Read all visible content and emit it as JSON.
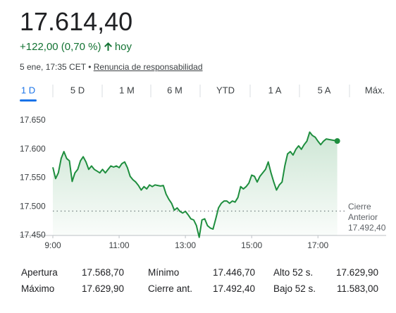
{
  "header": {
    "price": "17.614,40",
    "change": "+122,00 (0,70 %)",
    "period": "hoy",
    "timestamp": "5 ene, 17:35 CET",
    "separator": "•",
    "disclaimer": "Renuncia de responsabilidad"
  },
  "tabs": [
    "1 D",
    "5 D",
    "1 M",
    "6 M",
    "YTD",
    "1 A",
    "5 A",
    "Máx."
  ],
  "chart_data": {
    "type": "line",
    "color": "#1e8e3e",
    "x": [
      540,
      545,
      550,
      555,
      560,
      565,
      570,
      575,
      580,
      585,
      590,
      595,
      600,
      605,
      610,
      615,
      620,
      625,
      630,
      635,
      640,
      645,
      650,
      655,
      660,
      665,
      670,
      675,
      680,
      685,
      690,
      695,
      700,
      705,
      710,
      715,
      720,
      725,
      730,
      735,
      740,
      745,
      750,
      755,
      760,
      765,
      770,
      775,
      780,
      785,
      790,
      795,
      800,
      805,
      810,
      815,
      820,
      825,
      830,
      835,
      840,
      845,
      850,
      855,
      860,
      865,
      870,
      875,
      880,
      885,
      890,
      895,
      900,
      905,
      910,
      915,
      920,
      925,
      930,
      935,
      940,
      945,
      950,
      955,
      960,
      965,
      970,
      975,
      980,
      985,
      990,
      995,
      1000,
      1005,
      1010,
      1015,
      1020,
      1025,
      1030,
      1035,
      1040,
      1055
    ],
    "values": [
      17568.7,
      17549,
      17559,
      17584,
      17596,
      17584,
      17580,
      17544,
      17559,
      17565,
      17580,
      17587,
      17578,
      17565,
      17571,
      17565,
      17562,
      17559,
      17565,
      17559,
      17565,
      17571,
      17569,
      17571,
      17568,
      17575,
      17578,
      17568,
      17553,
      17547,
      17543,
      17537,
      17529,
      17535,
      17531,
      17538,
      17535,
      17538,
      17537,
      17536,
      17537,
      17522,
      17513,
      17506,
      17494,
      17498,
      17492,
      17489,
      17492,
      17486,
      17479,
      17477,
      17467,
      17446.7,
      17477,
      17479,
      17467,
      17463,
      17461,
      17479,
      17498,
      17506,
      17510,
      17510,
      17506,
      17510,
      17508,
      17516,
      17535,
      17531,
      17535,
      17541,
      17555,
      17553,
      17543,
      17553,
      17559,
      17565,
      17578,
      17559,
      17543,
      17529,
      17538,
      17543,
      17571,
      17592,
      17596,
      17590,
      17600,
      17606,
      17600,
      17608,
      17614,
      17629.9,
      17624,
      17621,
      17614,
      17608,
      17614,
      17618,
      17617,
      17614.4
    ],
    "xlim": [
      540,
      1095
    ],
    "xticks": [
      {
        "value": 540,
        "label": "9:00"
      },
      {
        "value": 660,
        "label": "11:00"
      },
      {
        "value": 780,
        "label": "13:00"
      },
      {
        "value": 900,
        "label": "15:00"
      },
      {
        "value": 1020,
        "label": "17:00"
      }
    ],
    "ylim": [
      17450,
      17650
    ],
    "yticks": [
      {
        "value": 17450,
        "label": "17.450"
      },
      {
        "value": 17500,
        "label": "17.500"
      },
      {
        "value": 17550,
        "label": "17.550"
      },
      {
        "value": 17600,
        "label": "17.600"
      },
      {
        "value": 17650,
        "label": "17.650"
      }
    ],
    "previous_close": {
      "value": 17492.4,
      "label": "Cierre Anterior",
      "value_label": "17.492,40"
    }
  },
  "stats": {
    "rows": [
      [
        {
          "label": "Apertura",
          "value": "17.568,70"
        },
        {
          "label": "Mínimo",
          "value": "17.446,70"
        },
        {
          "label": "Alto 52 s.",
          "value": "17.629,90"
        }
      ],
      [
        {
          "label": "Máximo",
          "value": "17.629,90"
        },
        {
          "label": "Cierre ant.",
          "value": "17.492,40"
        },
        {
          "label": "Bajo 52 s.",
          "value": "11.583,00"
        }
      ]
    ]
  }
}
